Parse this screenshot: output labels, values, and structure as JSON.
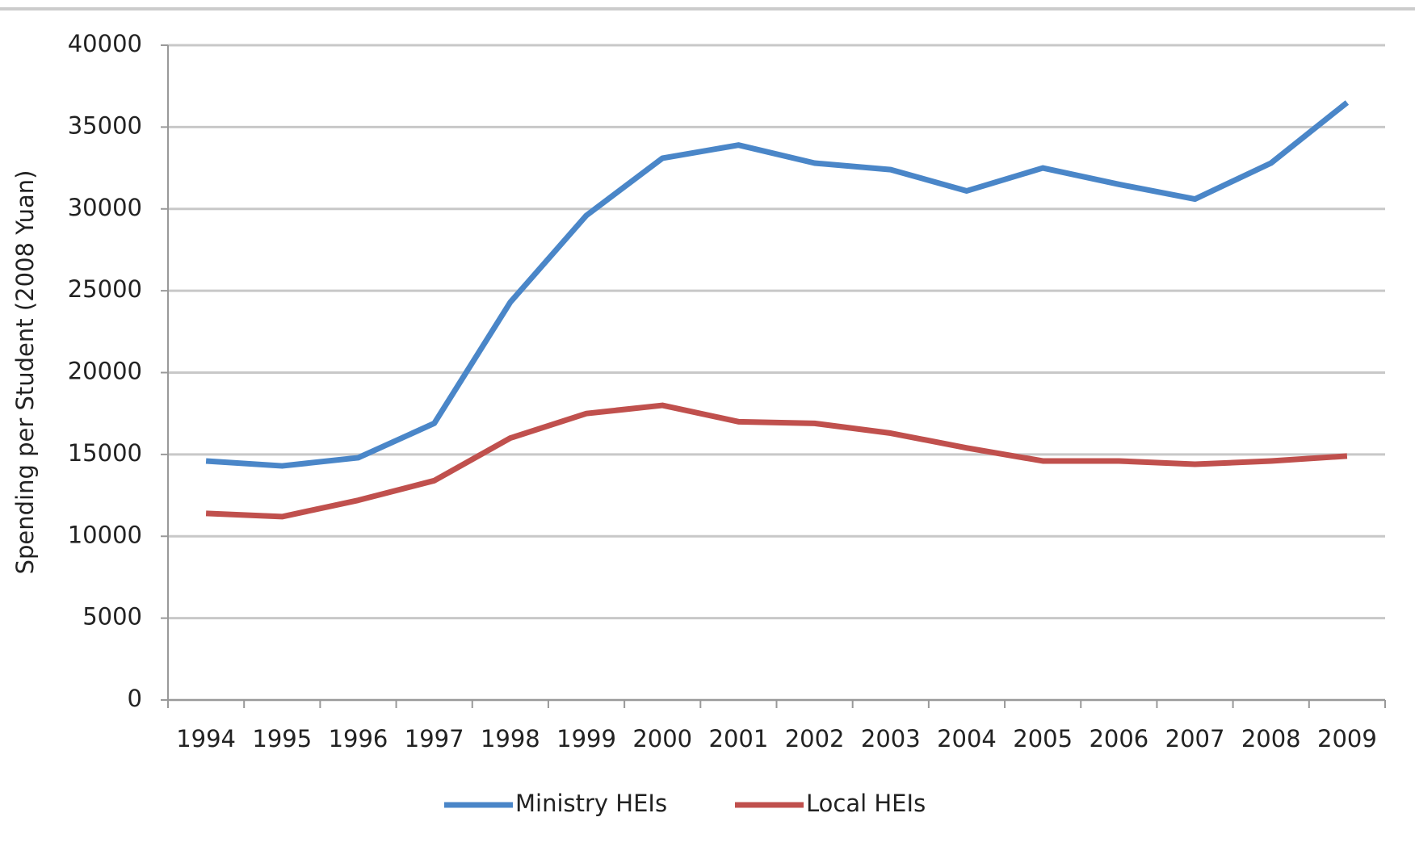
{
  "chart_data": {
    "type": "line",
    "y_label": "Spending per Student (2008 Yuan)",
    "categories": [
      "1994",
      "1995",
      "1996",
      "1997",
      "1998",
      "1999",
      "2000",
      "2001",
      "2002",
      "2003",
      "2004",
      "2005",
      "2006",
      "2007",
      "2008",
      "2009"
    ],
    "series": [
      {
        "name": "Ministry HEIs",
        "color": "#4a86c8",
        "values": [
          14600,
          14300,
          14800,
          16900,
          24300,
          29600,
          33100,
          33900,
          32800,
          32400,
          31100,
          32500,
          31500,
          30600,
          32800,
          36500
        ]
      },
      {
        "name": "Local HEIs",
        "color": "#c0504d",
        "values": [
          11400,
          11200,
          12200,
          13400,
          16000,
          17500,
          18000,
          17000,
          16900,
          16300,
          15400,
          14600,
          14600,
          14400,
          14600,
          14900
        ]
      }
    ],
    "ylim": [
      0,
      40000
    ],
    "yticks": [
      0,
      5000,
      10000,
      15000,
      20000,
      25000,
      30000,
      35000,
      40000
    ],
    "grid": true,
    "legend": "bottom"
  }
}
